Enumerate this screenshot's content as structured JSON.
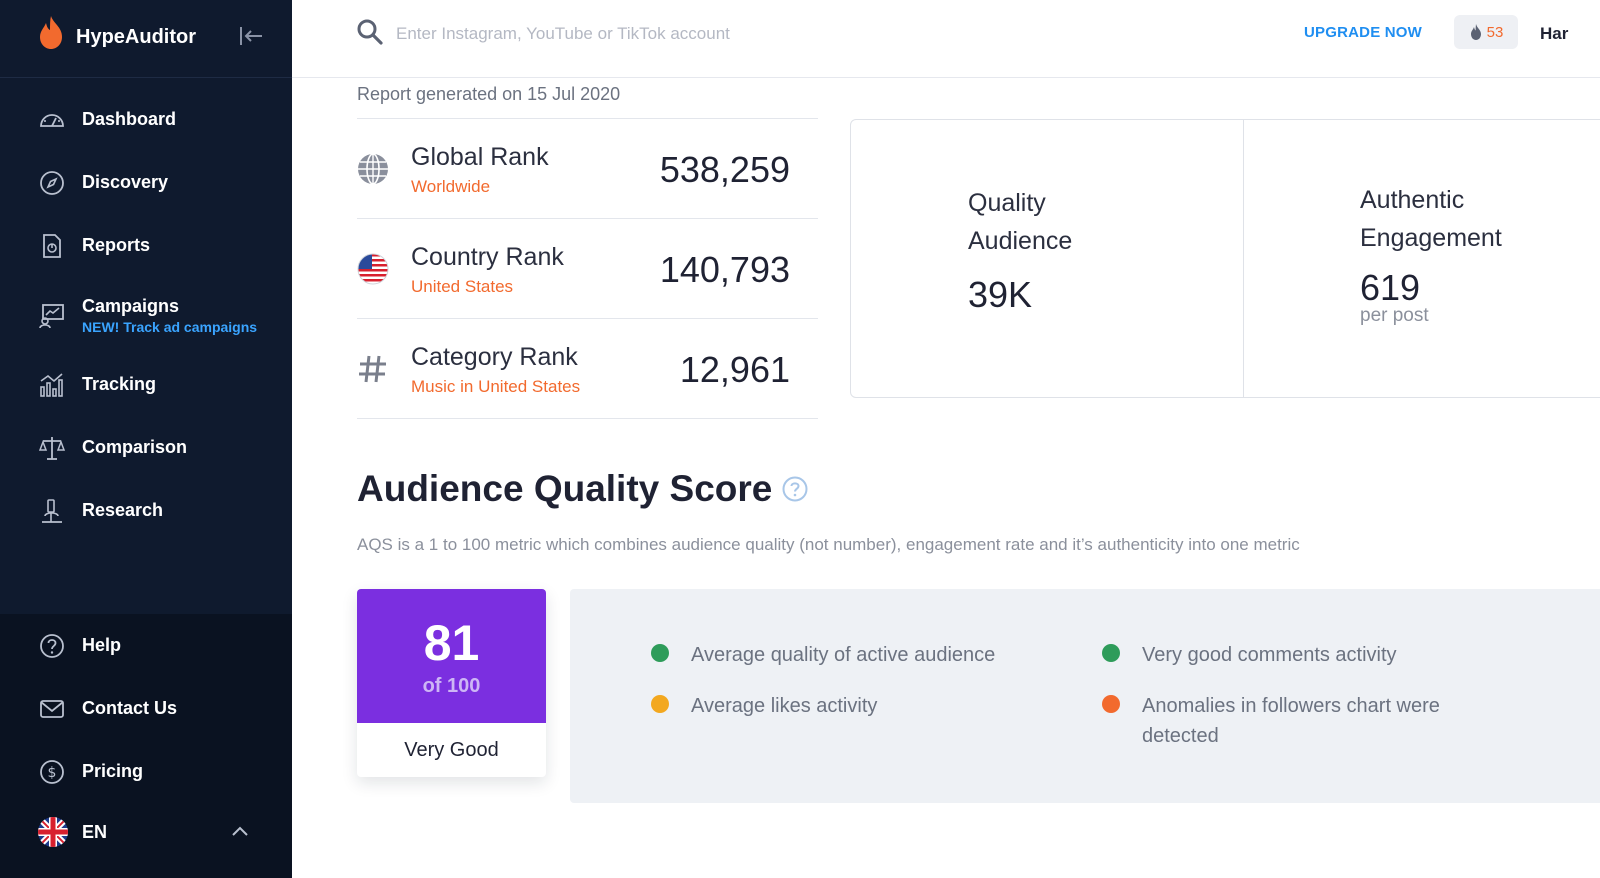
{
  "app": {
    "name": "HypeAuditor"
  },
  "sidebar": {
    "items": [
      {
        "label": "Dashboard",
        "icon": "dashboard-icon"
      },
      {
        "label": "Discovery",
        "icon": "compass-icon"
      },
      {
        "label": "Reports",
        "icon": "report-icon"
      },
      {
        "label": "Campaigns",
        "icon": "campaign-icon",
        "sub": "NEW! Track ad campaigns"
      },
      {
        "label": "Tracking",
        "icon": "tracking-icon"
      },
      {
        "label": "Comparison",
        "icon": "scales-icon"
      },
      {
        "label": "Research",
        "icon": "microscope-icon"
      }
    ],
    "bottom_items": [
      {
        "label": "Help",
        "icon": "help-icon"
      },
      {
        "label": "Contact Us",
        "icon": "mail-icon"
      },
      {
        "label": "Pricing",
        "icon": "dollar-icon"
      }
    ],
    "language": "EN"
  },
  "topbar": {
    "search_placeholder": "Enter Instagram, YouTube or TikTok account",
    "upgrade_label": "UPGRADE NOW",
    "credits": "53",
    "user_name": "Har"
  },
  "report": {
    "generated": "Report generated on 15 Jul 2020",
    "ranks": [
      {
        "title": "Global Rank",
        "sub": "Worldwide",
        "value": "538,259",
        "icon": "globe-icon"
      },
      {
        "title": "Country Rank",
        "sub": "United States",
        "value": "140,793",
        "icon": "us-flag-icon"
      },
      {
        "title": "Category Rank",
        "sub": "Music in United States",
        "value": "12,961",
        "icon": "hash-icon"
      }
    ],
    "stats": [
      {
        "label_line1": "Quality",
        "label_line2": "Audience",
        "value": "39K",
        "unit": ""
      },
      {
        "label_line1": "Authentic",
        "label_line2": "Engagement",
        "value": "619",
        "unit": "per post"
      }
    ]
  },
  "aqs": {
    "title": "Audience Quality Score",
    "description": "AQS is a 1 to 100 metric which combines audience quality (not number), engagement rate and it’s authenticity into one metric",
    "score": "81",
    "score_of": "of 100",
    "score_label": "Very Good",
    "score_color": "#7b2fe0",
    "factors": [
      {
        "text": "Average quality of active audience",
        "color": "#2e9c5a"
      },
      {
        "text": "Average likes activity",
        "color": "#f3a81f"
      },
      {
        "text": "Very good comments activity",
        "color": "#2e9c5a"
      },
      {
        "text": "Anomalies in followers chart were detected",
        "color": "#f26a2e"
      }
    ]
  }
}
